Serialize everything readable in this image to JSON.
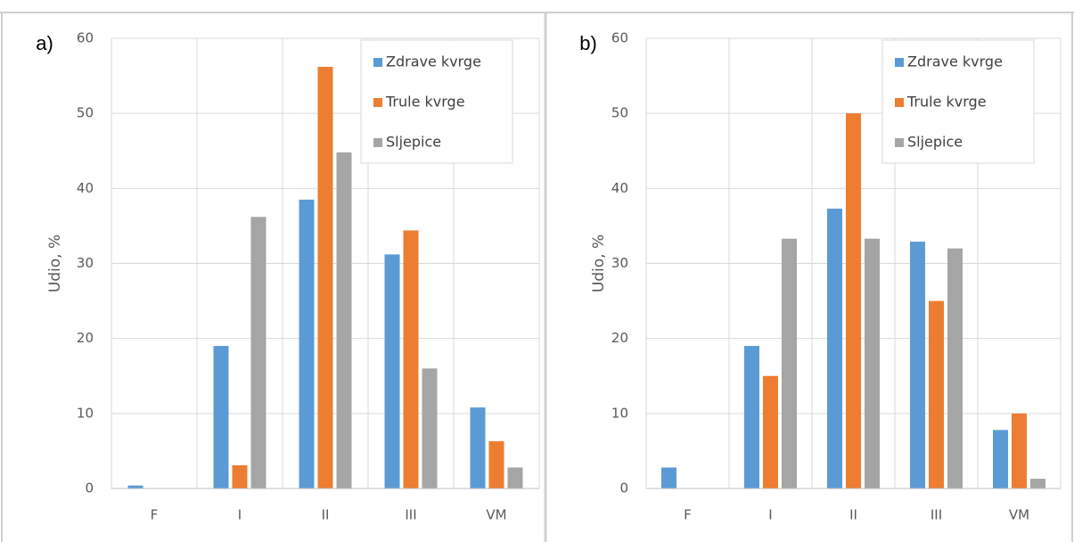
{
  "chart_data": [
    {
      "type": "bar",
      "panel_label": "a)",
      "ylabel": "Udio, %",
      "categories": [
        "F",
        "I",
        "II",
        "III",
        "VM"
      ],
      "series": [
        {
          "name": "Zdrave kvrge",
          "color": "#5b9bd5",
          "values": [
            0.4,
            19,
            38.5,
            31.2,
            10.8
          ]
        },
        {
          "name": "Trule kvrge",
          "color": "#ed7d31",
          "values": [
            0,
            3.1,
            56.2,
            34.4,
            6.3
          ]
        },
        {
          "name": "Sljepice",
          "color": "#a5a5a5",
          "values": [
            0,
            36.2,
            44.8,
            16,
            2.8
          ]
        }
      ],
      "ylim": [
        0,
        60
      ],
      "yticks": [
        0,
        10,
        20,
        30,
        40,
        50,
        60
      ],
      "grid": true,
      "legend": "top-right"
    },
    {
      "type": "bar",
      "panel_label": "b)",
      "ylabel": "Udio, %",
      "categories": [
        "F",
        "I",
        "II",
        "III",
        "VM"
      ],
      "series": [
        {
          "name": "Zdrave kvrge",
          "color": "#5b9bd5",
          "values": [
            2.8,
            19,
            37.3,
            32.9,
            7.8
          ]
        },
        {
          "name": "Trule kvrge",
          "color": "#ed7d31",
          "values": [
            0,
            15,
            50,
            25,
            10
          ]
        },
        {
          "name": "Sljepice",
          "color": "#a5a5a5",
          "values": [
            0,
            33.3,
            33.3,
            32,
            1.3
          ]
        }
      ],
      "ylim": [
        0,
        60
      ],
      "yticks": [
        0,
        10,
        20,
        30,
        40,
        50,
        60
      ],
      "grid": true,
      "legend": "top-right"
    }
  ]
}
